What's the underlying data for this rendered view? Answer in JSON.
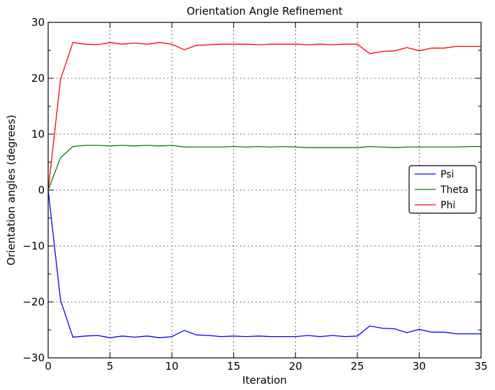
{
  "chart_data": {
    "type": "line",
    "title": "Orientation Angle Refinement",
    "xlabel": "Iteration",
    "ylabel": "Orientation angles (degrees)",
    "xlim": [
      0,
      35
    ],
    "ylim": [
      -30,
      30
    ],
    "x_ticks": [
      0,
      5,
      10,
      15,
      20,
      25,
      30,
      35
    ],
    "y_ticks": [
      -30,
      -20,
      -10,
      0,
      10,
      20,
      30
    ],
    "grid": true,
    "legend_position": "center-right",
    "x": [
      0,
      1,
      2,
      3,
      4,
      5,
      6,
      7,
      8,
      9,
      10,
      11,
      12,
      13,
      14,
      15,
      16,
      17,
      18,
      19,
      20,
      21,
      22,
      23,
      24,
      25,
      26,
      27,
      28,
      29,
      30,
      31,
      32,
      33,
      34,
      35
    ],
    "series": [
      {
        "name": "Psi",
        "color": "#0000ff",
        "values": [
          0,
          -19.7,
          -26.3,
          -26.1,
          -26.0,
          -26.4,
          -26.1,
          -26.3,
          -26.1,
          -26.4,
          -26.2,
          -25.1,
          -25.9,
          -26.0,
          -26.2,
          -26.1,
          -26.2,
          -26.1,
          -26.2,
          -26.2,
          -26.2,
          -26.0,
          -26.2,
          -26.0,
          -26.2,
          -26.1,
          -24.3,
          -24.7,
          -24.8,
          -25.5,
          -24.9,
          -25.4,
          -25.4,
          -25.7,
          -25.7,
          -25.7
        ]
      },
      {
        "name": "Theta",
        "color": "#007f00",
        "values": [
          0,
          5.8,
          7.8,
          8.0,
          8.0,
          7.9,
          8.0,
          7.9,
          8.0,
          7.9,
          8.0,
          7.7,
          7.7,
          7.7,
          7.7,
          7.8,
          7.7,
          7.8,
          7.7,
          7.8,
          7.7,
          7.6,
          7.6,
          7.6,
          7.6,
          7.6,
          7.8,
          7.7,
          7.6,
          7.7,
          7.7,
          7.7,
          7.7,
          7.7,
          7.8,
          7.8
        ]
      },
      {
        "name": "Phi",
        "color": "#ff0000",
        "values": [
          0,
          19.8,
          26.4,
          26.1,
          26.0,
          26.4,
          26.1,
          26.3,
          26.1,
          26.4,
          26.1,
          25.1,
          25.9,
          26.0,
          26.1,
          26.1,
          26.1,
          26.0,
          26.1,
          26.1,
          26.1,
          26.0,
          26.1,
          26.0,
          26.1,
          26.1,
          24.4,
          24.8,
          24.9,
          25.5,
          24.9,
          25.4,
          25.4,
          25.7,
          25.7,
          25.7
        ]
      }
    ]
  }
}
